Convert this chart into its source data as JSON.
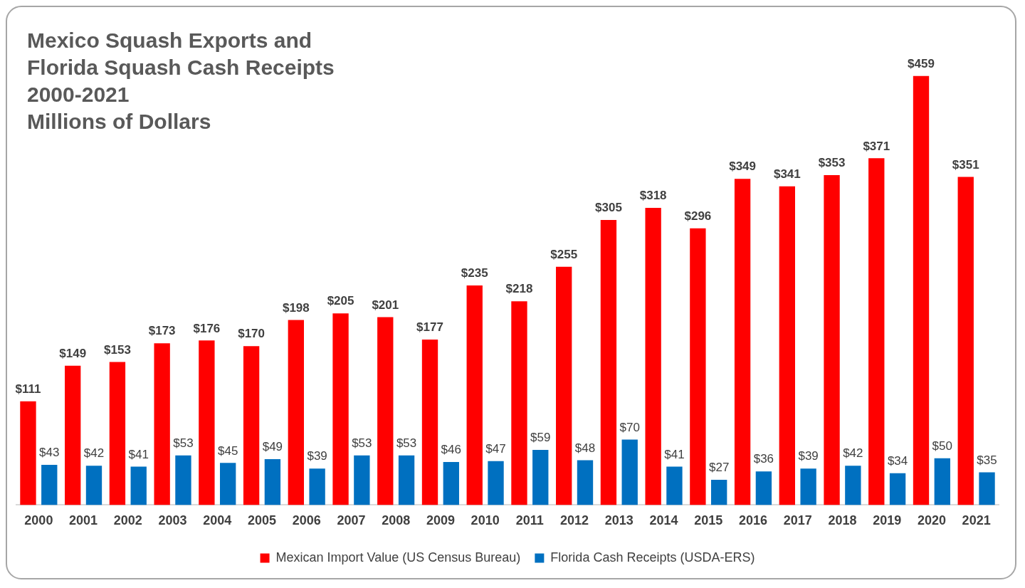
{
  "chart_data": {
    "type": "bar",
    "title": "Mexico Squash Exports and\nFlorida Squash Cash Receipts\n2000-2021\nMillions of Dollars",
    "categories": [
      "2000",
      "2001",
      "2002",
      "2003",
      "2004",
      "2005",
      "2006",
      "2007",
      "2008",
      "2009",
      "2010",
      "2011",
      "2012",
      "2013",
      "2014",
      "2015",
      "2016",
      "2017",
      "2018",
      "2019",
      "2020",
      "2021"
    ],
    "series": [
      {
        "name": "Mexican Import Value (US Census Bureau)",
        "color": "#ff0000",
        "values": [
          111,
          149,
          153,
          173,
          176,
          170,
          198,
          205,
          201,
          177,
          235,
          218,
          255,
          305,
          318,
          296,
          349,
          341,
          353,
          371,
          459,
          351
        ],
        "value_labels": [
          "$111",
          "$149",
          "$153",
          "$173",
          "$176",
          "$170",
          "$198",
          "$205",
          "$201",
          "$177",
          "$235",
          "$218",
          "$255",
          "$305",
          "$318",
          "$296",
          "$349",
          "$341",
          "$353",
          "$371",
          "$459",
          "$351"
        ]
      },
      {
        "name": "Florida Cash Receipts (USDA-ERS)",
        "color": "#0070c0",
        "values": [
          43,
          42,
          41,
          53,
          45,
          49,
          39,
          53,
          53,
          46,
          47,
          59,
          48,
          70,
          41,
          27,
          36,
          39,
          42,
          34,
          50,
          35
        ],
        "value_labels": [
          "$43",
          "$42",
          "$41",
          "$53",
          "$45",
          "$49",
          "$39",
          "$53",
          "$53",
          "$46",
          "$47",
          "$59",
          "$48",
          "$70",
          "$41",
          "$27",
          "$36",
          "$39",
          "$42",
          "$34",
          "$50",
          "$35"
        ]
      }
    ],
    "legend": "bottom",
    "grid": false
  }
}
